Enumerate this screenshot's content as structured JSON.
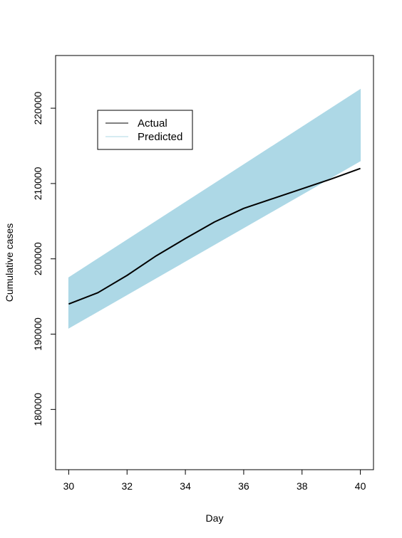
{
  "chart_data": {
    "type": "line",
    "xlabel": "Day",
    "ylabel": "Cumulative cases",
    "xlim": [
      29.55,
      40.45
    ],
    "ylim": [
      172000,
      227000
    ],
    "xticks": [
      30,
      32,
      34,
      36,
      38,
      40
    ],
    "yticks": [
      180000,
      190000,
      200000,
      210000,
      220000
    ],
    "grid": false,
    "legend_position": "top-left",
    "series": [
      {
        "name": "Actual",
        "color": "#000000",
        "x": [
          30,
          31,
          32,
          33,
          34,
          35,
          36,
          37,
          38,
          39,
          40
        ],
        "y": [
          194000,
          195500,
          197800,
          200400,
          202700,
          204900,
          206700,
          208000,
          209300,
          210600,
          212000
        ]
      },
      {
        "name": "Predicted",
        "color": "#add8e6",
        "type": "band",
        "x": [
          30,
          40
        ],
        "lower": [
          190800,
          213000
        ],
        "upper": [
          197500,
          222500
        ]
      }
    ]
  }
}
